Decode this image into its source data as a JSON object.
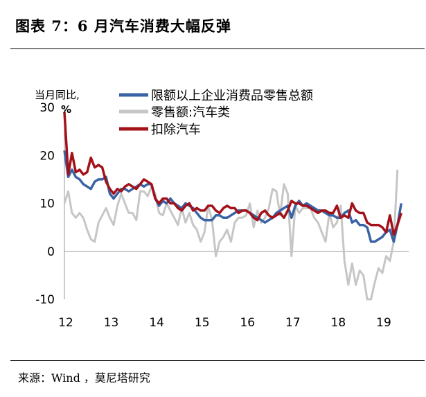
{
  "title": "图表 7：6 月汽车消费大幅反弹",
  "source": "来源：Wind ，莫尼塔研究",
  "colors": {
    "total": "#3a63a5",
    "auto": "#c6c6c6",
    "exauto": "#a3111a"
  },
  "chart_data": {
    "type": "line",
    "title": "",
    "ylabel_line1": "当月同比,",
    "ylabel_line2": "%",
    "xlabel": "",
    "ylim": [
      -10,
      30
    ],
    "yticks": [
      30,
      20,
      10,
      0,
      -10
    ],
    "xlim": [
      2012.0,
      2019.58
    ],
    "xticks": [
      {
        "label": "12",
        "x": 2012.0
      },
      {
        "label": "13",
        "x": 2013.0
      },
      {
        "label": "14",
        "x": 2014.0
      },
      {
        "label": "15",
        "x": 2015.0
      },
      {
        "label": "16",
        "x": 2016.0
      },
      {
        "label": "17",
        "x": 2017.0
      },
      {
        "label": "18",
        "x": 2018.0
      },
      {
        "label": "19",
        "x": 2019.0
      }
    ],
    "x_start": "2012-01",
    "legend_position": "top-center",
    "series": [
      {
        "key": "total",
        "name": "限额以上企业消费品零售总额",
        "values": [
          21.0,
          15.5,
          17.0,
          15.5,
          15.0,
          14.0,
          13.5,
          13.0,
          14.5,
          15.0,
          15.0,
          15.5,
          12.0,
          11.0,
          12.0,
          13.0,
          13.0,
          12.5,
          13.0,
          13.5,
          14.0,
          13.5,
          14.0,
          14.0,
          11.0,
          9.5,
          10.5,
          10.0,
          11.0,
          10.0,
          9.5,
          9.0,
          10.0,
          9.5,
          9.0,
          8.0,
          7.0,
          6.5,
          6.5,
          6.5,
          7.5,
          7.5,
          7.0,
          7.0,
          7.5,
          8.0,
          8.5,
          8.5,
          8.5,
          8.0,
          7.5,
          7.0,
          6.5,
          6.0,
          6.5,
          7.0,
          8.0,
          8.5,
          9.0,
          9.5,
          7.0,
          9.5,
          10.5,
          9.5,
          10.0,
          9.5,
          9.0,
          8.5,
          8.5,
          8.0,
          7.5,
          7.5,
          7.0,
          7.0,
          8.0,
          8.5,
          6.0,
          6.5,
          5.5,
          5.5,
          5.0,
          2.0,
          2.0,
          2.5,
          3.0,
          4.0,
          4.5,
          2.0,
          5.5,
          10.0
        ]
      },
      {
        "key": "auto",
        "name": "零售额:汽车类",
        "values": [
          10.0,
          12.5,
          8.0,
          7.0,
          8.0,
          7.0,
          4.5,
          2.5,
          2.0,
          6.0,
          7.5,
          9.0,
          7.0,
          5.5,
          9.5,
          12.0,
          10.0,
          8.0,
          8.0,
          6.5,
          12.5,
          12.5,
          11.5,
          13.5,
          12.0,
          8.0,
          7.5,
          10.0,
          8.5,
          7.0,
          5.5,
          9.0,
          6.0,
          8.0,
          5.5,
          4.5,
          2.0,
          4.0,
          9.5,
          6.5,
          -1.0,
          2.0,
          3.0,
          4.5,
          2.0,
          6.0,
          7.0,
          7.0,
          7.5,
          10.0,
          5.0,
          8.5,
          6.0,
          7.0,
          9.0,
          13.0,
          12.5,
          7.5,
          14.0,
          12.0,
          -1.0,
          9.5,
          8.0,
          9.0,
          9.0,
          9.0,
          7.0,
          6.0,
          4.0,
          2.0,
          8.0,
          5.0,
          6.0,
          9.5,
          -2.0,
          -7.0,
          -2.5,
          -7.0,
          -4.0,
          -5.0,
          -10.0,
          -10.0,
          -6.5,
          -3.5,
          -4.5,
          -1.0,
          -2.0,
          2.0,
          17.0
        ]
      },
      {
        "key": "exauto",
        "name": "扣除汽车",
        "values": [
          29.0,
          16.0,
          20.5,
          16.5,
          17.0,
          16.0,
          16.5,
          19.5,
          17.5,
          18.0,
          17.5,
          14.5,
          13.0,
          12.0,
          13.0,
          12.5,
          13.5,
          14.0,
          13.5,
          13.0,
          14.0,
          15.0,
          14.5,
          14.0,
          11.0,
          10.0,
          11.0,
          11.0,
          10.0,
          10.0,
          9.0,
          8.5,
          9.5,
          10.0,
          8.5,
          9.0,
          8.5,
          8.5,
          9.5,
          9.5,
          8.5,
          8.0,
          9.0,
          9.5,
          9.0,
          9.0,
          8.0,
          8.5,
          8.5,
          8.0,
          7.0,
          6.5,
          8.0,
          8.5,
          7.5,
          7.0,
          7.5,
          8.0,
          7.0,
          8.5,
          10.5,
          10.0,
          10.0,
          9.5,
          9.5,
          9.0,
          8.5,
          8.0,
          8.5,
          8.5,
          8.0,
          8.0,
          9.5,
          7.0,
          7.5,
          7.0,
          10.0,
          8.5,
          8.0,
          8.0,
          6.0,
          5.5,
          5.5,
          5.5,
          5.0,
          4.0,
          7.5,
          3.5,
          5.5,
          8.0
        ]
      }
    ]
  }
}
